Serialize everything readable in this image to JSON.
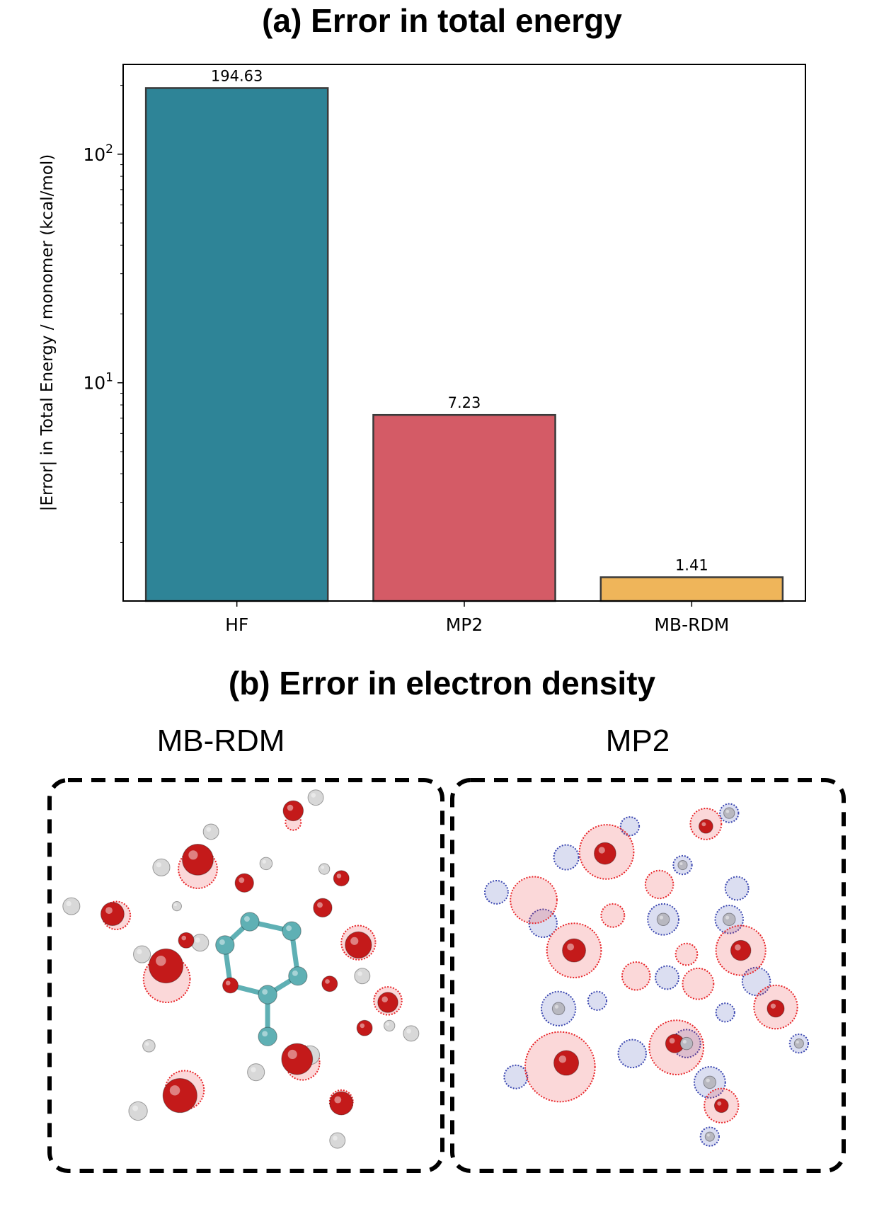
{
  "panel_a": {
    "title": "(a) Error in total energy"
  },
  "panel_b": {
    "title": "(b) Error in electron density",
    "left_label": "MB-RDM",
    "right_label": "MP2"
  },
  "chart_data": {
    "type": "bar",
    "title": "(a) Error in total energy",
    "xlabel": "",
    "ylabel": "|Error| in Total Energy / monomer (kcal/mol)",
    "yscale": "log",
    "ylim": [
      1.11,
      247
    ],
    "yticks": [
      {
        "value": 10,
        "base": "10",
        "exp": "1"
      },
      {
        "value": 100,
        "base": "10",
        "exp": "2"
      }
    ],
    "categories": [
      "HF",
      "MP2",
      "MB-RDM"
    ],
    "values": [
      194.63,
      7.23,
      1.41
    ],
    "value_labels": [
      "194.63",
      "7.23",
      "1.41"
    ],
    "colors": [
      "#2e8497",
      "#d45b66",
      "#efb55a"
    ],
    "edge_color": "#3a3a3a",
    "grid": false,
    "legend": "none"
  },
  "colors": {
    "error_positive": "#e8262a",
    "error_negative": "#3a46b0",
    "oxygen": "#c41a1a",
    "hydrogen": "#d8d8d8",
    "carbon": "#5fb0b4"
  }
}
